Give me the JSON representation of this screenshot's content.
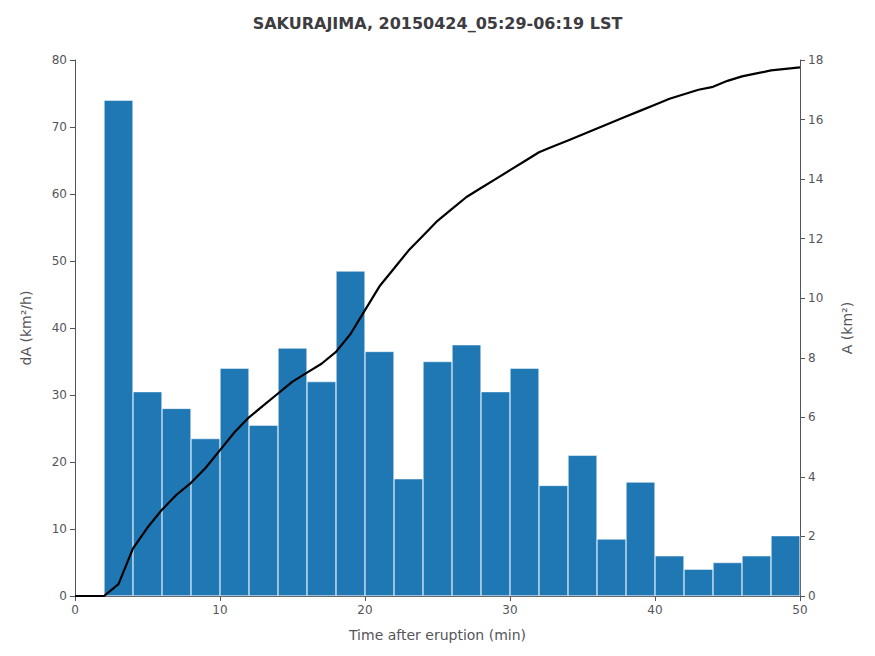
{
  "chart_data": {
    "type": "bar",
    "title": "SAKURAJIMA, 20150424_05:29-06:19 LST",
    "xlabel": "Time after eruption (min)",
    "ylabel": "dA (km²/h)",
    "y2label": "A (km²)",
    "series": [
      {
        "type": "bar",
        "color": "#1f77b4",
        "x": [
          3,
          5,
          7,
          9,
          11,
          13,
          15,
          17,
          19,
          21,
          23,
          25,
          27,
          29,
          31,
          33,
          35,
          37,
          39,
          41,
          43,
          45,
          47,
          49
        ],
        "values": [
          74.0,
          30.5,
          28.0,
          23.5,
          34.0,
          25.5,
          37.0,
          32.0,
          48.5,
          36.5,
          17.5,
          35.0,
          37.5,
          30.5,
          34.0,
          16.5,
          21.0,
          8.5,
          17.0,
          6.0,
          4.0,
          5.0,
          6.0,
          9.0
        ]
      },
      {
        "type": "line",
        "color": "black",
        "axis": "y2",
        "x": [
          0,
          1,
          2,
          3,
          4,
          5,
          6,
          7,
          8,
          9,
          10,
          11,
          12,
          13,
          14,
          15,
          16,
          17,
          18,
          19,
          20,
          21,
          22,
          23,
          24,
          25,
          26,
          27,
          28,
          29,
          30,
          31,
          32,
          33,
          34,
          35,
          36,
          37,
          38,
          39,
          40,
          41,
          42,
          43,
          44,
          45,
          46,
          47,
          48,
          49,
          50
        ],
        "values": [
          0,
          0,
          0,
          0.4,
          1.6,
          2.3,
          2.9,
          3.4,
          3.8,
          4.3,
          4.9,
          5.5,
          6.0,
          6.4,
          6.8,
          7.2,
          7.5,
          7.8,
          8.2,
          8.8,
          9.6,
          10.4,
          11.0,
          11.6,
          12.1,
          12.6,
          13.0,
          13.4,
          13.7,
          14.0,
          14.3,
          14.6,
          14.9,
          15.1,
          15.3,
          15.5,
          15.7,
          15.9,
          16.1,
          16.3,
          16.5,
          16.7,
          16.85,
          17.0,
          17.1,
          17.3,
          17.45,
          17.55,
          17.65,
          17.7,
          17.75
        ]
      }
    ],
    "xlim": [
      0,
      50
    ],
    "xticks": [
      0,
      10,
      20,
      30,
      40,
      50
    ],
    "ylim": [
      0,
      80
    ],
    "yticks": [
      0,
      10,
      20,
      30,
      40,
      50,
      60,
      70,
      80
    ],
    "y2lim": [
      0,
      18
    ],
    "y2ticks": [
      0,
      2,
      4,
      6,
      8,
      10,
      12,
      14,
      16,
      18
    ],
    "grid": false
  }
}
